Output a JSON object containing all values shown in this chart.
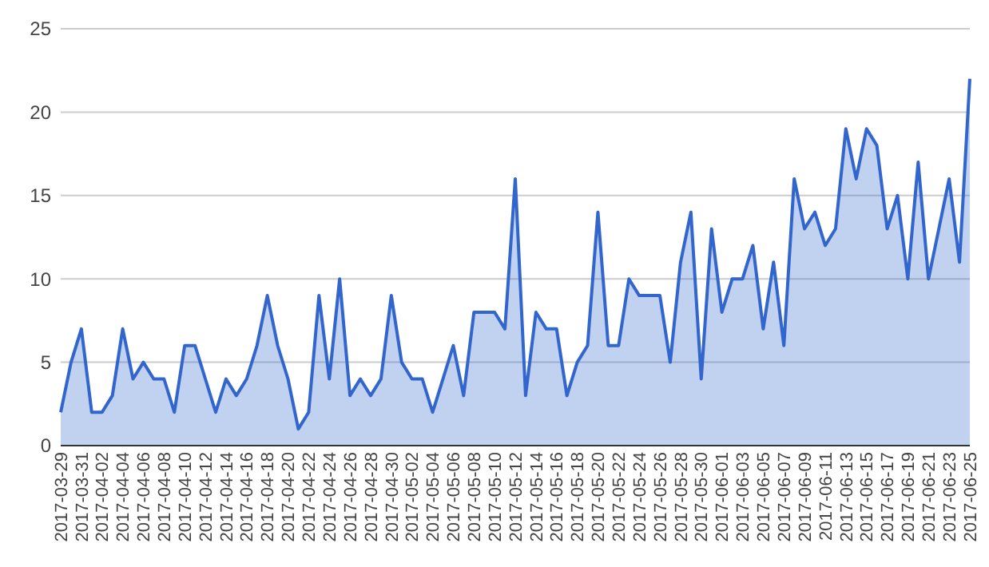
{
  "chart_data": {
    "type": "area",
    "x": [
      "2017-03-29",
      "2017-03-30",
      "2017-03-31",
      "2017-04-01",
      "2017-04-02",
      "2017-04-03",
      "2017-04-04",
      "2017-04-05",
      "2017-04-06",
      "2017-04-07",
      "2017-04-08",
      "2017-04-09",
      "2017-04-10",
      "2017-04-11",
      "2017-04-12",
      "2017-04-13",
      "2017-04-14",
      "2017-04-15",
      "2017-04-16",
      "2017-04-17",
      "2017-04-18",
      "2017-04-19",
      "2017-04-20",
      "2017-04-21",
      "2017-04-22",
      "2017-04-23",
      "2017-04-24",
      "2017-04-25",
      "2017-04-26",
      "2017-04-27",
      "2017-04-28",
      "2017-04-29",
      "2017-04-30",
      "2017-05-01",
      "2017-05-02",
      "2017-05-03",
      "2017-05-04",
      "2017-05-05",
      "2017-05-06",
      "2017-05-07",
      "2017-05-08",
      "2017-05-09",
      "2017-05-10",
      "2017-05-11",
      "2017-05-12",
      "2017-05-13",
      "2017-05-14",
      "2017-05-15",
      "2017-05-16",
      "2017-05-17",
      "2017-05-18",
      "2017-05-19",
      "2017-05-20",
      "2017-05-21",
      "2017-05-22",
      "2017-05-23",
      "2017-05-24",
      "2017-05-25",
      "2017-05-26",
      "2017-05-27",
      "2017-05-28",
      "2017-05-29",
      "2017-05-30",
      "2017-05-31",
      "2017-06-01",
      "2017-06-02",
      "2017-06-03",
      "2017-06-04",
      "2017-06-05",
      "2017-06-06",
      "2017-06-07",
      "2017-06-08",
      "2017-06-09",
      "2017-06-10",
      "2017-06-11",
      "2017-06-12",
      "2017-06-13",
      "2017-06-14",
      "2017-06-15",
      "2017-06-16",
      "2017-06-17",
      "2017-06-18",
      "2017-06-19",
      "2017-06-20",
      "2017-06-21",
      "2017-06-22",
      "2017-06-23",
      "2017-06-24",
      "2017-06-25"
    ],
    "series": [
      {
        "color": "#3366cc",
        "values": [
          2,
          5,
          7,
          2,
          2,
          3,
          7,
          4,
          5,
          4,
          4,
          2,
          6,
          6,
          4,
          2,
          4,
          3,
          4,
          6,
          9,
          6,
          4,
          1,
          2,
          9,
          4,
          10,
          3,
          4,
          3,
          4,
          9,
          5,
          4,
          4,
          2,
          4,
          6,
          3,
          8,
          8,
          8,
          7,
          16,
          3,
          8,
          7,
          7,
          3,
          5,
          6,
          14,
          6,
          6,
          10,
          9,
          9,
          9,
          5,
          11,
          14,
          4,
          13,
          8,
          10,
          10,
          12,
          7,
          11,
          6,
          16,
          13,
          14,
          12,
          13,
          19,
          16,
          19,
          18,
          13,
          15,
          10,
          17,
          10,
          13,
          16,
          11,
          22
        ]
      }
    ],
    "xlim": [
      "2017-03-29",
      "2017-06-25"
    ],
    "xticks": [
      "2017-03-29",
      "2017-03-31",
      "2017-04-02",
      "2017-04-04",
      "2017-04-06",
      "2017-04-08",
      "2017-04-10",
      "2017-04-12",
      "2017-04-14",
      "2017-04-16",
      "2017-04-18",
      "2017-04-20",
      "2017-04-22",
      "2017-04-24",
      "2017-04-26",
      "2017-04-28",
      "2017-04-30",
      "2017-05-02",
      "2017-05-04",
      "2017-05-06",
      "2017-05-08",
      "2017-05-10",
      "2017-05-12",
      "2017-05-14",
      "2017-05-16",
      "2017-05-18",
      "2017-05-20",
      "2017-05-22",
      "2017-05-24",
      "2017-05-26",
      "2017-05-28",
      "2017-05-30",
      "2017-06-01",
      "2017-06-03",
      "2017-06-05",
      "2017-06-07",
      "2017-06-09",
      "2017-06-11",
      "2017-06-13",
      "2017-06-15",
      "2017-06-17",
      "2017-06-19",
      "2017-06-21",
      "2017-06-23",
      "2017-06-25"
    ],
    "ylim": [
      0,
      25
    ],
    "yticks": [
      0,
      5,
      10,
      15,
      20,
      25
    ],
    "grid": "y"
  }
}
